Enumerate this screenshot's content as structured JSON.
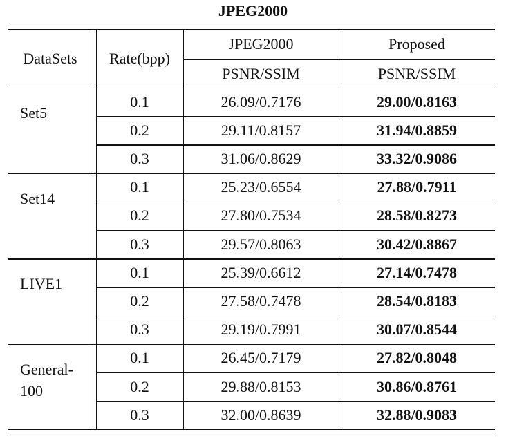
{
  "caption": "JPEG2000",
  "header": {
    "datasets": "DataSets",
    "rate": "Rate(bpp)",
    "method_a": "JPEG2000",
    "method_b": "Proposed",
    "metric_a": "PSNR/SSIM",
    "metric_b": "PSNR/SSIM"
  },
  "groups": [
    {
      "name": "Set5",
      "rows": [
        {
          "rate": "0.1",
          "a": "26.09/0.7176",
          "b": "29.00/0.8163"
        },
        {
          "rate": "0.2",
          "a": "29.11/0.8157",
          "b": "31.94/0.8859"
        },
        {
          "rate": "0.3",
          "a": "31.06/0.8629",
          "b": "33.32/0.9086"
        }
      ]
    },
    {
      "name": "Set14",
      "rows": [
        {
          "rate": "0.1",
          "a": "25.23/0.6554",
          "b": "27.88/0.7911"
        },
        {
          "rate": "0.2",
          "a": "27.80/0.7534",
          "b": "28.58/0.8273"
        },
        {
          "rate": "0.3",
          "a": "29.57/0.8063",
          "b": "30.42/0.8867"
        }
      ]
    },
    {
      "name": "LIVE1",
      "rows": [
        {
          "rate": "0.1",
          "a": "25.39/0.6612",
          "b": "27.14/0.7478"
        },
        {
          "rate": "0.2",
          "a": "27.58/0.7478",
          "b": "28.54/0.8183"
        },
        {
          "rate": "0.3",
          "a": "29.19/0.7991",
          "b": "30.07/0.8544"
        }
      ]
    },
    {
      "name": "General-\n100",
      "rows": [
        {
          "rate": "0.1",
          "a": "26.45/0.7179",
          "b": "27.82/0.8048"
        },
        {
          "rate": "0.2",
          "a": "29.88/0.8153",
          "b": "30.86/0.8761"
        },
        {
          "rate": "0.3",
          "a": "32.00/0.8639",
          "b": "32.88/0.9083"
        }
      ]
    }
  ]
}
